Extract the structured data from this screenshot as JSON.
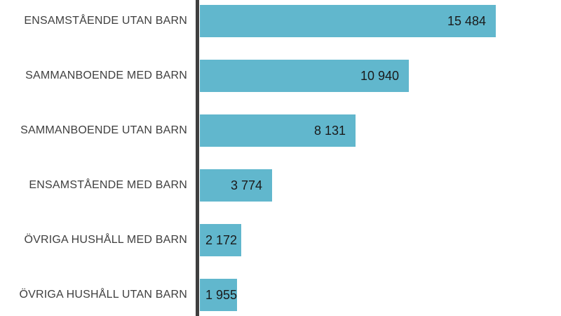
{
  "page": {
    "background": "#ffffff"
  },
  "chart_data": {
    "type": "bar",
    "orientation": "horizontal",
    "title": "",
    "xlabel": "",
    "ylabel": "",
    "categories": [
      "ENSAMSTÅENDE UTAN BARN",
      "SAMMANBOENDE MED BARN",
      "SAMMANBOENDE UTAN BARN",
      "ENSAMSTÅENDE MED BARN",
      "ÖVRIGA HUSHÅLL MED BARN",
      "ÖVRIGA HUSHÅLL UTAN BARN"
    ],
    "values": [
      15484,
      10940,
      8131,
      3774,
      2172,
      1955
    ],
    "value_labels": [
      "15 484",
      "10 940",
      "8 131",
      "3 774",
      "2 172",
      "1 955"
    ],
    "xlim": [
      0,
      18900
    ],
    "grid": false,
    "legend": false,
    "value_label_position": "inside-end",
    "bar_color": "#61b7cd",
    "axis_color": "#3f3f3f",
    "category_text_color": "#3f3f3f",
    "value_text_color": "#1a1a1a",
    "background_color": "#ffffff"
  }
}
